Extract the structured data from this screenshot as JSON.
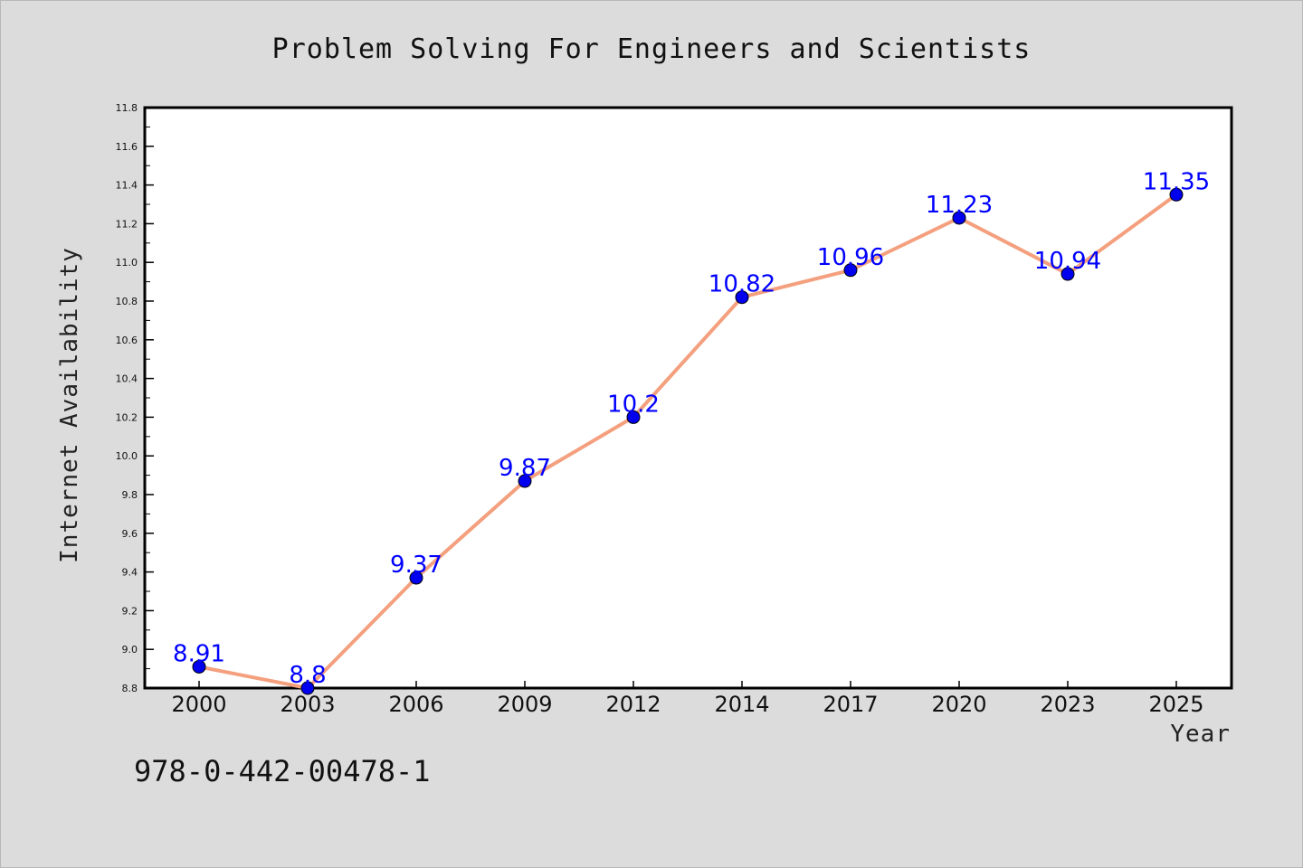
{
  "chart_data": {
    "type": "line",
    "title": "Problem Solving For Engineers and Scientists",
    "xlabel": "Year",
    "ylabel": "Internet Availability",
    "categories": [
      "2000",
      "2003",
      "2006",
      "2009",
      "2012",
      "2014",
      "2017",
      "2020",
      "2023",
      "2025"
    ],
    "series": [
      {
        "values": [
          8.91,
          8.8,
          9.37,
          9.87,
          10.2,
          10.82,
          10.96,
          11.23,
          10.94,
          11.35
        ],
        "data_labels": [
          "8.91",
          "8.8",
          "9.37",
          "9.87",
          "10.2",
          "10.82",
          "10.96",
          "11.23",
          "10.94",
          "11.35"
        ],
        "line_color": "#f4a07e",
        "marker_color": "#0000ee",
        "label_color": "#0000ff"
      }
    ],
    "ylim": [
      8.8,
      11.8
    ],
    "yticks": [
      "8.8",
      "9.0",
      "9.2",
      "9.4",
      "9.6",
      "9.8",
      "10.0",
      "10.2",
      "10.4",
      "10.6",
      "10.8",
      "11.0",
      "11.2",
      "11.4",
      "11.6",
      "11.8"
    ],
    "grid": false,
    "legend": "none"
  },
  "footer": {
    "text": "978-0-442-00478-1"
  },
  "colors": {
    "background": "#dcdcdc",
    "plot_area": "#ffffff"
  }
}
